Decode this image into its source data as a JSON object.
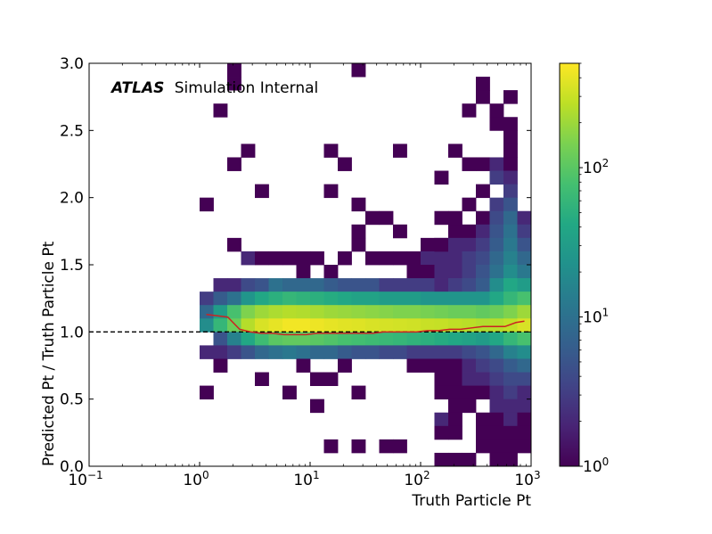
{
  "chart_data": {
    "type": "heatmap",
    "title": "",
    "xlabel": "Truth Particle Pt",
    "ylabel": "Predicted Pt / Truth Particle Pt",
    "x_scale": "log",
    "xlim": [
      0.1,
      1000
    ],
    "ylim": [
      0.0,
      3.0
    ],
    "x_ticks": [
      {
        "value": 0.1,
        "base": "10",
        "exp": "−1"
      },
      {
        "value": 1,
        "base": "10",
        "exp": "0"
      },
      {
        "value": 10,
        "base": "10",
        "exp": "1"
      },
      {
        "value": 100,
        "base": "10",
        "exp": "2"
      },
      {
        "value": 1000,
        "base": "10",
        "exp": "3"
      }
    ],
    "y_ticks": [
      "0.0",
      "0.5",
      "1.0",
      "1.5",
      "2.0",
      "2.5",
      "3.0"
    ],
    "annotation": {
      "bold": "ATLAS",
      "rest": "Simulation Internal"
    },
    "colorbar": {
      "scale": "log",
      "range": [
        1,
        500
      ],
      "colormap": "viridis",
      "ticks": [
        {
          "value": 1,
          "base": "10",
          "exp": "0"
        },
        {
          "value": 10,
          "base": "10",
          "exp": "1"
        },
        {
          "value": 100,
          "base": "10",
          "exp": "2"
        }
      ]
    },
    "reference_line": {
      "y": 1.0,
      "style": "dashed",
      "color": "#000000"
    },
    "bins": {
      "x_edges_log10": [
        0,
        3
      ],
      "n_x_bins": 24,
      "y_bin_width": 0.1,
      "note_cells": "[x_bin_index, y_bin_lower_edge, count]"
    },
    "cells": [
      [
        0,
        1.2,
        3
      ],
      [
        0,
        1.1,
        8
      ],
      [
        0,
        1.0,
        20
      ],
      [
        0,
        0.8,
        2
      ],
      [
        0,
        0.5,
        1
      ],
      [
        0,
        1.9,
        1
      ],
      [
        1,
        1.3,
        2
      ],
      [
        1,
        1.2,
        6
      ],
      [
        1,
        1.1,
        30
      ],
      [
        1,
        1.0,
        60
      ],
      [
        1,
        0.9,
        5
      ],
      [
        1,
        0.8,
        2
      ],
      [
        1,
        0.7,
        1
      ],
      [
        1,
        2.6,
        1
      ],
      [
        2,
        1.3,
        2
      ],
      [
        2,
        1.2,
        10
      ],
      [
        2,
        1.1,
        80
      ],
      [
        2,
        1.0,
        120
      ],
      [
        2,
        0.9,
        15
      ],
      [
        2,
        0.8,
        3
      ],
      [
        2,
        1.6,
        1
      ],
      [
        2,
        2.8,
        1
      ],
      [
        2,
        2.9,
        1
      ],
      [
        2,
        2.2,
        1
      ],
      [
        3,
        1.5,
        2
      ],
      [
        3,
        1.3,
        4
      ],
      [
        3,
        1.2,
        25
      ],
      [
        3,
        1.1,
        150
      ],
      [
        3,
        1.0,
        250
      ],
      [
        3,
        0.9,
        40
      ],
      [
        3,
        0.8,
        5
      ],
      [
        3,
        2.3,
        1
      ],
      [
        4,
        1.5,
        1
      ],
      [
        4,
        1.3,
        5
      ],
      [
        4,
        1.2,
        40
      ],
      [
        4,
        1.1,
        200
      ],
      [
        4,
        1.0,
        350
      ],
      [
        4,
        0.9,
        70
      ],
      [
        4,
        0.8,
        8
      ],
      [
        4,
        0.6,
        1
      ],
      [
        4,
        2.0,
        1
      ],
      [
        5,
        1.5,
        1
      ],
      [
        5,
        1.3,
        10
      ],
      [
        5,
        1.2,
        50
      ],
      [
        5,
        1.1,
        230
      ],
      [
        5,
        1.0,
        400
      ],
      [
        5,
        0.9,
        100
      ],
      [
        5,
        0.8,
        10
      ],
      [
        6,
        1.5,
        1
      ],
      [
        6,
        1.3,
        8
      ],
      [
        6,
        1.2,
        60
      ],
      [
        6,
        1.1,
        250
      ],
      [
        6,
        1.0,
        450
      ],
      [
        6,
        0.9,
        110
      ],
      [
        6,
        0.8,
        12
      ],
      [
        6,
        0.5,
        1
      ],
      [
        7,
        1.5,
        1
      ],
      [
        7,
        1.4,
        1
      ],
      [
        7,
        1.3,
        8
      ],
      [
        7,
        1.2,
        55
      ],
      [
        7,
        1.1,
        240
      ],
      [
        7,
        1.0,
        450
      ],
      [
        7,
        0.9,
        110
      ],
      [
        7,
        0.8,
        10
      ],
      [
        7,
        0.7,
        1
      ],
      [
        8,
        1.5,
        1
      ],
      [
        8,
        1.3,
        8
      ],
      [
        8,
        1.2,
        50
      ],
      [
        8,
        1.1,
        220
      ],
      [
        8,
        1.0,
        430
      ],
      [
        8,
        0.9,
        100
      ],
      [
        8,
        0.8,
        8
      ],
      [
        8,
        0.6,
        1
      ],
      [
        8,
        0.4,
        1
      ],
      [
        9,
        1.4,
        1
      ],
      [
        9,
        1.3,
        6
      ],
      [
        9,
        1.2,
        45
      ],
      [
        9,
        1.1,
        200
      ],
      [
        9,
        1.0,
        400
      ],
      [
        9,
        0.9,
        90
      ],
      [
        9,
        0.8,
        8
      ],
      [
        9,
        2.3,
        1
      ],
      [
        9,
        2.0,
        1
      ],
      [
        9,
        0.6,
        1
      ],
      [
        9,
        0.1,
        1
      ],
      [
        10,
        1.5,
        1
      ],
      [
        10,
        1.3,
        5
      ],
      [
        10,
        1.2,
        40
      ],
      [
        10,
        1.1,
        190
      ],
      [
        10,
        1.0,
        380
      ],
      [
        10,
        0.9,
        80
      ],
      [
        10,
        0.8,
        6
      ],
      [
        10,
        0.7,
        1
      ],
      [
        10,
        2.2,
        1
      ],
      [
        11,
        1.6,
        1
      ],
      [
        11,
        1.3,
        5
      ],
      [
        11,
        1.2,
        35
      ],
      [
        11,
        1.1,
        180
      ],
      [
        11,
        1.0,
        370
      ],
      [
        11,
        0.9,
        75
      ],
      [
        11,
        0.8,
        5
      ],
      [
        11,
        0.5,
        1
      ],
      [
        11,
        2.9,
        1
      ],
      [
        11,
        1.7,
        1
      ],
      [
        11,
        1.9,
        1
      ],
      [
        11,
        0.1,
        1
      ],
      [
        12,
        1.5,
        1
      ],
      [
        12,
        1.3,
        5
      ],
      [
        12,
        1.2,
        35
      ],
      [
        12,
        1.1,
        170
      ],
      [
        12,
        1.0,
        350
      ],
      [
        12,
        0.9,
        70
      ],
      [
        12,
        0.8,
        5
      ],
      [
        12,
        1.8,
        1
      ],
      [
        13,
        1.3,
        3
      ],
      [
        13,
        1.2,
        30
      ],
      [
        13,
        1.1,
        160
      ],
      [
        13,
        1.0,
        340
      ],
      [
        13,
        0.9,
        65
      ],
      [
        13,
        0.8,
        4
      ],
      [
        13,
        1.5,
        1
      ],
      [
        13,
        1.8,
        1
      ],
      [
        13,
        0.1,
        1
      ],
      [
        14,
        1.5,
        1
      ],
      [
        14,
        1.3,
        3
      ],
      [
        14,
        1.2,
        30
      ],
      [
        14,
        1.1,
        150
      ],
      [
        14,
        1.0,
        330
      ],
      [
        14,
        0.9,
        60
      ],
      [
        14,
        0.8,
        4
      ],
      [
        14,
        2.3,
        1
      ],
      [
        14,
        1.7,
        1
      ],
      [
        14,
        0.1,
        1
      ],
      [
        15,
        1.5,
        1
      ],
      [
        15,
        1.4,
        1
      ],
      [
        15,
        1.3,
        3
      ],
      [
        15,
        1.2,
        30
      ],
      [
        15,
        1.1,
        150
      ],
      [
        15,
        1.0,
        320
      ],
      [
        15,
        0.9,
        55
      ],
      [
        15,
        0.8,
        3
      ],
      [
        15,
        0.7,
        1
      ],
      [
        16,
        1.6,
        1
      ],
      [
        16,
        1.5,
        2
      ],
      [
        16,
        1.4,
        1
      ],
      [
        16,
        1.3,
        3
      ],
      [
        16,
        1.2,
        25
      ],
      [
        16,
        1.1,
        140
      ],
      [
        16,
        1.0,
        300
      ],
      [
        16,
        0.9,
        50
      ],
      [
        16,
        0.8,
        3
      ],
      [
        16,
        0.7,
        1
      ],
      [
        17,
        1.6,
        2
      ],
      [
        17,
        1.5,
        2
      ],
      [
        17,
        1.4,
        2
      ],
      [
        17,
        1.3,
        2
      ],
      [
        17,
        1.2,
        25
      ],
      [
        17,
        1.1,
        130
      ],
      [
        17,
        1.0,
        290
      ],
      [
        17,
        0.9,
        45
      ],
      [
        17,
        0.8,
        3
      ],
      [
        17,
        0.7,
        1
      ],
      [
        17,
        0.6,
        1
      ],
      [
        17,
        0.5,
        1
      ],
      [
        17,
        0.3,
        2
      ],
      [
        17,
        0.2,
        1
      ],
      [
        17,
        2.1,
        1
      ],
      [
        17,
        1.8,
        1
      ],
      [
        17,
        1.6,
        1
      ],
      [
        17,
        0.0,
        1
      ],
      [
        18,
        1.7,
        1
      ],
      [
        18,
        1.6,
        2
      ],
      [
        18,
        1.5,
        2
      ],
      [
        18,
        1.4,
        2
      ],
      [
        18,
        1.3,
        3
      ],
      [
        18,
        1.2,
        25
      ],
      [
        18,
        1.1,
        120
      ],
      [
        18,
        1.0,
        270
      ],
      [
        18,
        0.9,
        40
      ],
      [
        18,
        0.8,
        3
      ],
      [
        18,
        0.7,
        1
      ],
      [
        18,
        0.6,
        1
      ],
      [
        18,
        0.5,
        1
      ],
      [
        18,
        0.4,
        1
      ],
      [
        18,
        0.3,
        1
      ],
      [
        18,
        0.2,
        1
      ],
      [
        18,
        2.3,
        1
      ],
      [
        18,
        1.8,
        1
      ],
      [
        18,
        0.0,
        1
      ],
      [
        19,
        2.2,
        1
      ],
      [
        19,
        1.9,
        1
      ],
      [
        19,
        1.7,
        1
      ],
      [
        19,
        1.6,
        2
      ],
      [
        19,
        1.5,
        3
      ],
      [
        19,
        1.4,
        3
      ],
      [
        19,
        1.3,
        4
      ],
      [
        19,
        1.2,
        25
      ],
      [
        19,
        1.1,
        120
      ],
      [
        19,
        1.0,
        260
      ],
      [
        19,
        0.9,
        35
      ],
      [
        19,
        0.8,
        4
      ],
      [
        19,
        0.7,
        2
      ],
      [
        19,
        0.6,
        2
      ],
      [
        19,
        0.5,
        1
      ],
      [
        19,
        0.4,
        1
      ],
      [
        19,
        2.6,
        1
      ],
      [
        19,
        0.0,
        1
      ],
      [
        20,
        2.8,
        1
      ],
      [
        20,
        2.7,
        1
      ],
      [
        20,
        2.2,
        1
      ],
      [
        20,
        2.0,
        1
      ],
      [
        20,
        1.8,
        1
      ],
      [
        20,
        1.7,
        2
      ],
      [
        20,
        1.6,
        3
      ],
      [
        20,
        1.5,
        4
      ],
      [
        20,
        1.4,
        5
      ],
      [
        20,
        1.3,
        6
      ],
      [
        20,
        1.2,
        25
      ],
      [
        20,
        1.1,
        110
      ],
      [
        20,
        1.0,
        240
      ],
      [
        20,
        0.9,
        30
      ],
      [
        20,
        0.8,
        5
      ],
      [
        20,
        0.7,
        3
      ],
      [
        20,
        0.6,
        2
      ],
      [
        20,
        0.5,
        1
      ],
      [
        20,
        0.3,
        1
      ],
      [
        20,
        0.2,
        1
      ],
      [
        20,
        0.1,
        1
      ],
      [
        21,
        2.2,
        2
      ],
      [
        21,
        2.1,
        3
      ],
      [
        21,
        1.9,
        3
      ],
      [
        21,
        1.8,
        4
      ],
      [
        21,
        1.7,
        5
      ],
      [
        21,
        1.6,
        6
      ],
      [
        21,
        1.5,
        8
      ],
      [
        21,
        1.4,
        10
      ],
      [
        21,
        1.3,
        20
      ],
      [
        21,
        1.2,
        40
      ],
      [
        21,
        1.1,
        120
      ],
      [
        21,
        1.0,
        250
      ],
      [
        21,
        0.9,
        40
      ],
      [
        21,
        0.8,
        8
      ],
      [
        21,
        0.7,
        4
      ],
      [
        21,
        0.6,
        3
      ],
      [
        21,
        0.5,
        2
      ],
      [
        21,
        0.4,
        2
      ],
      [
        21,
        0.3,
        1
      ],
      [
        21,
        0.2,
        1
      ],
      [
        21,
        0.1,
        1
      ],
      [
        21,
        0.0,
        1
      ],
      [
        21,
        2.6,
        1
      ],
      [
        21,
        2.5,
        1
      ],
      [
        22,
        2.7,
        1
      ],
      [
        22,
        2.5,
        1
      ],
      [
        22,
        2.4,
        1
      ],
      [
        22,
        2.3,
        1
      ],
      [
        22,
        2.2,
        1
      ],
      [
        22,
        2.1,
        2
      ],
      [
        22,
        2.0,
        3
      ],
      [
        22,
        1.9,
        5
      ],
      [
        22,
        1.8,
        8
      ],
      [
        22,
        1.7,
        10
      ],
      [
        22,
        1.6,
        12
      ],
      [
        22,
        1.5,
        15
      ],
      [
        22,
        1.4,
        20
      ],
      [
        22,
        1.3,
        40
      ],
      [
        22,
        1.2,
        60
      ],
      [
        22,
        1.1,
        150
      ],
      [
        22,
        1.0,
        280
      ],
      [
        22,
        0.9,
        60
      ],
      [
        22,
        0.8,
        15
      ],
      [
        22,
        0.7,
        6
      ],
      [
        22,
        0.6,
        4
      ],
      [
        22,
        0.5,
        3
      ],
      [
        22,
        0.4,
        2
      ],
      [
        22,
        0.3,
        2
      ],
      [
        22,
        0.2,
        1
      ],
      [
        22,
        0.1,
        1
      ],
      [
        22,
        0.0,
        1
      ],
      [
        23,
        1.8,
        2
      ],
      [
        23,
        1.7,
        3
      ],
      [
        23,
        1.6,
        5
      ],
      [
        23,
        1.5,
        8
      ],
      [
        23,
        1.4,
        12
      ],
      [
        23,
        1.3,
        30
      ],
      [
        23,
        1.2,
        80
      ],
      [
        23,
        1.1,
        200
      ],
      [
        23,
        1.0,
        350
      ],
      [
        23,
        0.9,
        80
      ],
      [
        23,
        0.8,
        20
      ],
      [
        23,
        0.7,
        8
      ],
      [
        23,
        0.6,
        4
      ],
      [
        23,
        0.5,
        2
      ],
      [
        23,
        0.4,
        2
      ],
      [
        23,
        0.3,
        1
      ],
      [
        23,
        0.2,
        1
      ],
      [
        23,
        0.1,
        1
      ]
    ],
    "series": [
      {
        "type": "line",
        "color": "#cc2222",
        "x": [
          1.15,
          1.45,
          1.8,
          2.3,
          2.9,
          3.6,
          4.6,
          5.8,
          7.3,
          9.2,
          11.5,
          14.5,
          18.3,
          23,
          29,
          37,
          46,
          58,
          73,
          92,
          115,
          145,
          183,
          230,
          290,
          365,
          460,
          580,
          730,
          870
        ],
        "y": [
          1.13,
          1.12,
          1.11,
          1.02,
          1.0,
          0.99,
          0.99,
          0.98,
          0.98,
          0.98,
          0.99,
          0.99,
          0.99,
          0.99,
          0.99,
          0.99,
          1.0,
          1.0,
          1.0,
          1.0,
          1.01,
          1.01,
          1.02,
          1.02,
          1.03,
          1.04,
          1.04,
          1.04,
          1.07,
          1.08
        ]
      }
    ]
  }
}
